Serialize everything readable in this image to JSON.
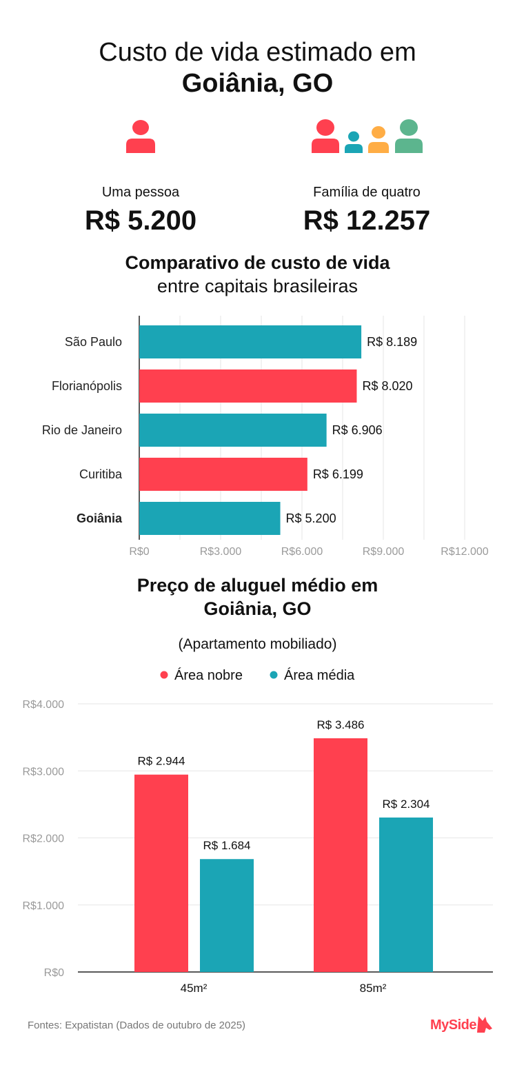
{
  "title": {
    "line1": "Custo de vida estimado em",
    "line2": "Goiânia, GO"
  },
  "summary": [
    {
      "label": "Uma pessoa",
      "value": "R$ 5.200",
      "icon": "person-icon"
    },
    {
      "label": "Família de quatro",
      "value": "R$ 12.257",
      "icon": "family-icon"
    }
  ],
  "colors": {
    "red": "#FF404F",
    "teal": "#1BA5B5",
    "orange": "#FFAD45",
    "green": "#5CB58E",
    "grid": "#e6e6e6",
    "axis_text": "#9a9a9a"
  },
  "chart_data": [
    {
      "type": "bar",
      "orientation": "horizontal",
      "title": "Comparativo de custo de vida",
      "subtitle": "entre capitais brasileiras",
      "categories": [
        "São Paulo",
        "Florianópolis",
        "Rio de Janeiro",
        "Curitiba",
        "Goiânia"
      ],
      "values": [
        8189,
        8020,
        6906,
        6199,
        5200
      ],
      "data_labels": [
        "R$ 8.189",
        "R$ 8.020",
        "R$ 6.906",
        "R$ 6.199",
        "R$ 5.200"
      ],
      "bar_colors": [
        "#1BA5B5",
        "#FF404F",
        "#1BA5B5",
        "#FF404F",
        "#1BA5B5"
      ],
      "highlight": "Goiânia",
      "xlim": [
        0,
        12000
      ],
      "xticks": [
        0,
        3000,
        6000,
        9000,
        12000
      ],
      "xtick_labels": [
        "R$0",
        "R$3.000",
        "R$6.000",
        "R$9.000",
        "R$12.000"
      ],
      "grid": true
    },
    {
      "type": "bar",
      "orientation": "vertical",
      "title": "Preço de aluguel médio em Goiânia, GO",
      "title_lines": [
        "Preço de aluguel médio em",
        "Goiânia, GO"
      ],
      "subtitle": "(Apartamento mobiliado)",
      "categories": [
        "45m²",
        "85m²"
      ],
      "series": [
        {
          "name": "Área nobre",
          "color": "#FF404F",
          "values": [
            2944,
            3486
          ],
          "labels": [
            "R$ 2.944",
            "R$ 3.486"
          ]
        },
        {
          "name": "Área média",
          "color": "#1BA5B5",
          "values": [
            1684,
            2304
          ],
          "labels": [
            "R$ 1.684",
            "R$ 2.304"
          ]
        }
      ],
      "ylim": [
        0,
        4000
      ],
      "yticks": [
        0,
        1000,
        2000,
        3000,
        4000
      ],
      "ytick_labels": [
        "R$0",
        "R$1.000",
        "R$2.000",
        "R$3.000",
        "R$4.000"
      ],
      "legend": "top-center",
      "grid": true
    }
  ],
  "footer": {
    "source": "Fontes: Expatistan (Dados de outubro de 2025)",
    "logo": "MySide"
  }
}
